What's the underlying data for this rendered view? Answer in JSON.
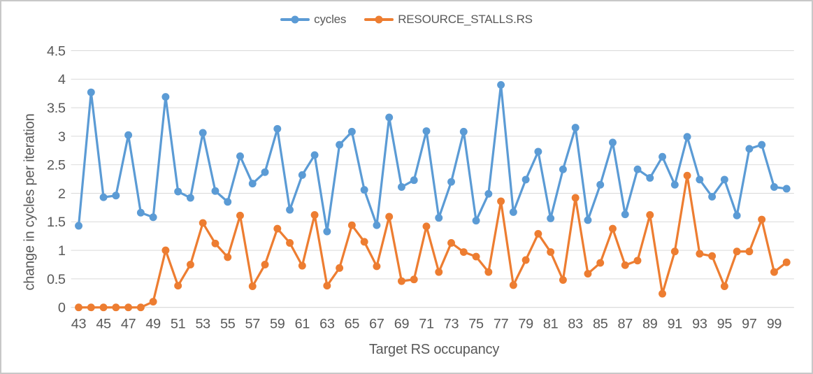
{
  "colors": {
    "series_cycles": "#5B9BD5",
    "series_stalls": "#ED7D31",
    "gridline": "#D9D9D9",
    "axis_line": "#D0D0D0",
    "text": "#595959",
    "frame_border": "#C8C8C8",
    "background": "#FFFFFF"
  },
  "chart_data": {
    "type": "line",
    "title": "",
    "xlabel": "Target RS occupancy",
    "ylabel": "change in cycles per iteration",
    "legend_position": "top-center",
    "grid": "horizontal",
    "ylim": [
      0,
      4.5
    ],
    "ytick_step": 0.5,
    "ytick_labels": [
      "0",
      "0.5",
      "1",
      "1.5",
      "2",
      "2.5",
      "3",
      "3.5",
      "4",
      "4.5"
    ],
    "xtick_labels": [
      43,
      45,
      47,
      49,
      51,
      53,
      55,
      57,
      59,
      61,
      63,
      65,
      67,
      69,
      71,
      73,
      75,
      77,
      79,
      81,
      83,
      85,
      87,
      89,
      91,
      93,
      95,
      97,
      99
    ],
    "x": [
      43,
      44,
      45,
      46,
      47,
      48,
      49,
      50,
      51,
      52,
      53,
      54,
      55,
      56,
      57,
      58,
      59,
      60,
      61,
      62,
      63,
      64,
      65,
      66,
      67,
      68,
      69,
      70,
      71,
      72,
      73,
      74,
      75,
      76,
      77,
      78,
      79,
      80,
      81,
      82,
      83,
      84,
      85,
      86,
      87,
      88,
      89,
      90,
      91,
      92,
      93,
      94,
      95,
      96,
      97,
      98,
      99,
      100
    ],
    "series": [
      {
        "name": "cycles",
        "color": "#5B9BD5",
        "values": [
          1.43,
          3.77,
          1.93,
          1.96,
          3.02,
          1.66,
          1.58,
          3.69,
          2.03,
          1.92,
          3.06,
          2.04,
          1.85,
          2.65,
          2.17,
          2.37,
          3.13,
          1.71,
          2.32,
          2.67,
          1.33,
          2.85,
          3.08,
          2.06,
          1.44,
          3.33,
          2.11,
          2.23,
          3.09,
          1.57,
          2.2,
          3.08,
          1.52,
          1.99,
          3.9,
          1.67,
          2.24,
          2.73,
          1.56,
          2.42,
          3.15,
          1.53,
          2.15,
          2.89,
          1.63,
          2.42,
          2.27,
          2.64,
          2.15,
          2.99,
          2.24,
          1.94,
          2.24,
          1.61,
          2.78,
          2.85,
          2.11,
          2.08
        ]
      },
      {
        "name": "RESOURCE_STALLS.RS",
        "color": "#ED7D31",
        "values": [
          0,
          0,
          0,
          0,
          0,
          0,
          0.1,
          1.0,
          0.38,
          0.75,
          1.48,
          1.12,
          0.88,
          1.61,
          0.37,
          0.75,
          1.38,
          1.13,
          0.73,
          1.62,
          0.38,
          0.69,
          1.44,
          1.15,
          0.72,
          1.59,
          0.46,
          0.49,
          1.42,
          0.62,
          1.13,
          0.97,
          0.89,
          0.62,
          1.86,
          0.39,
          0.83,
          1.29,
          0.97,
          0.48,
          1.92,
          0.59,
          0.78,
          1.38,
          0.74,
          0.82,
          1.62,
          0.24,
          0.98,
          2.31,
          0.94,
          0.9,
          0.37,
          0.98,
          0.98,
          1.54,
          0.62,
          0.79
        ]
      }
    ]
  }
}
